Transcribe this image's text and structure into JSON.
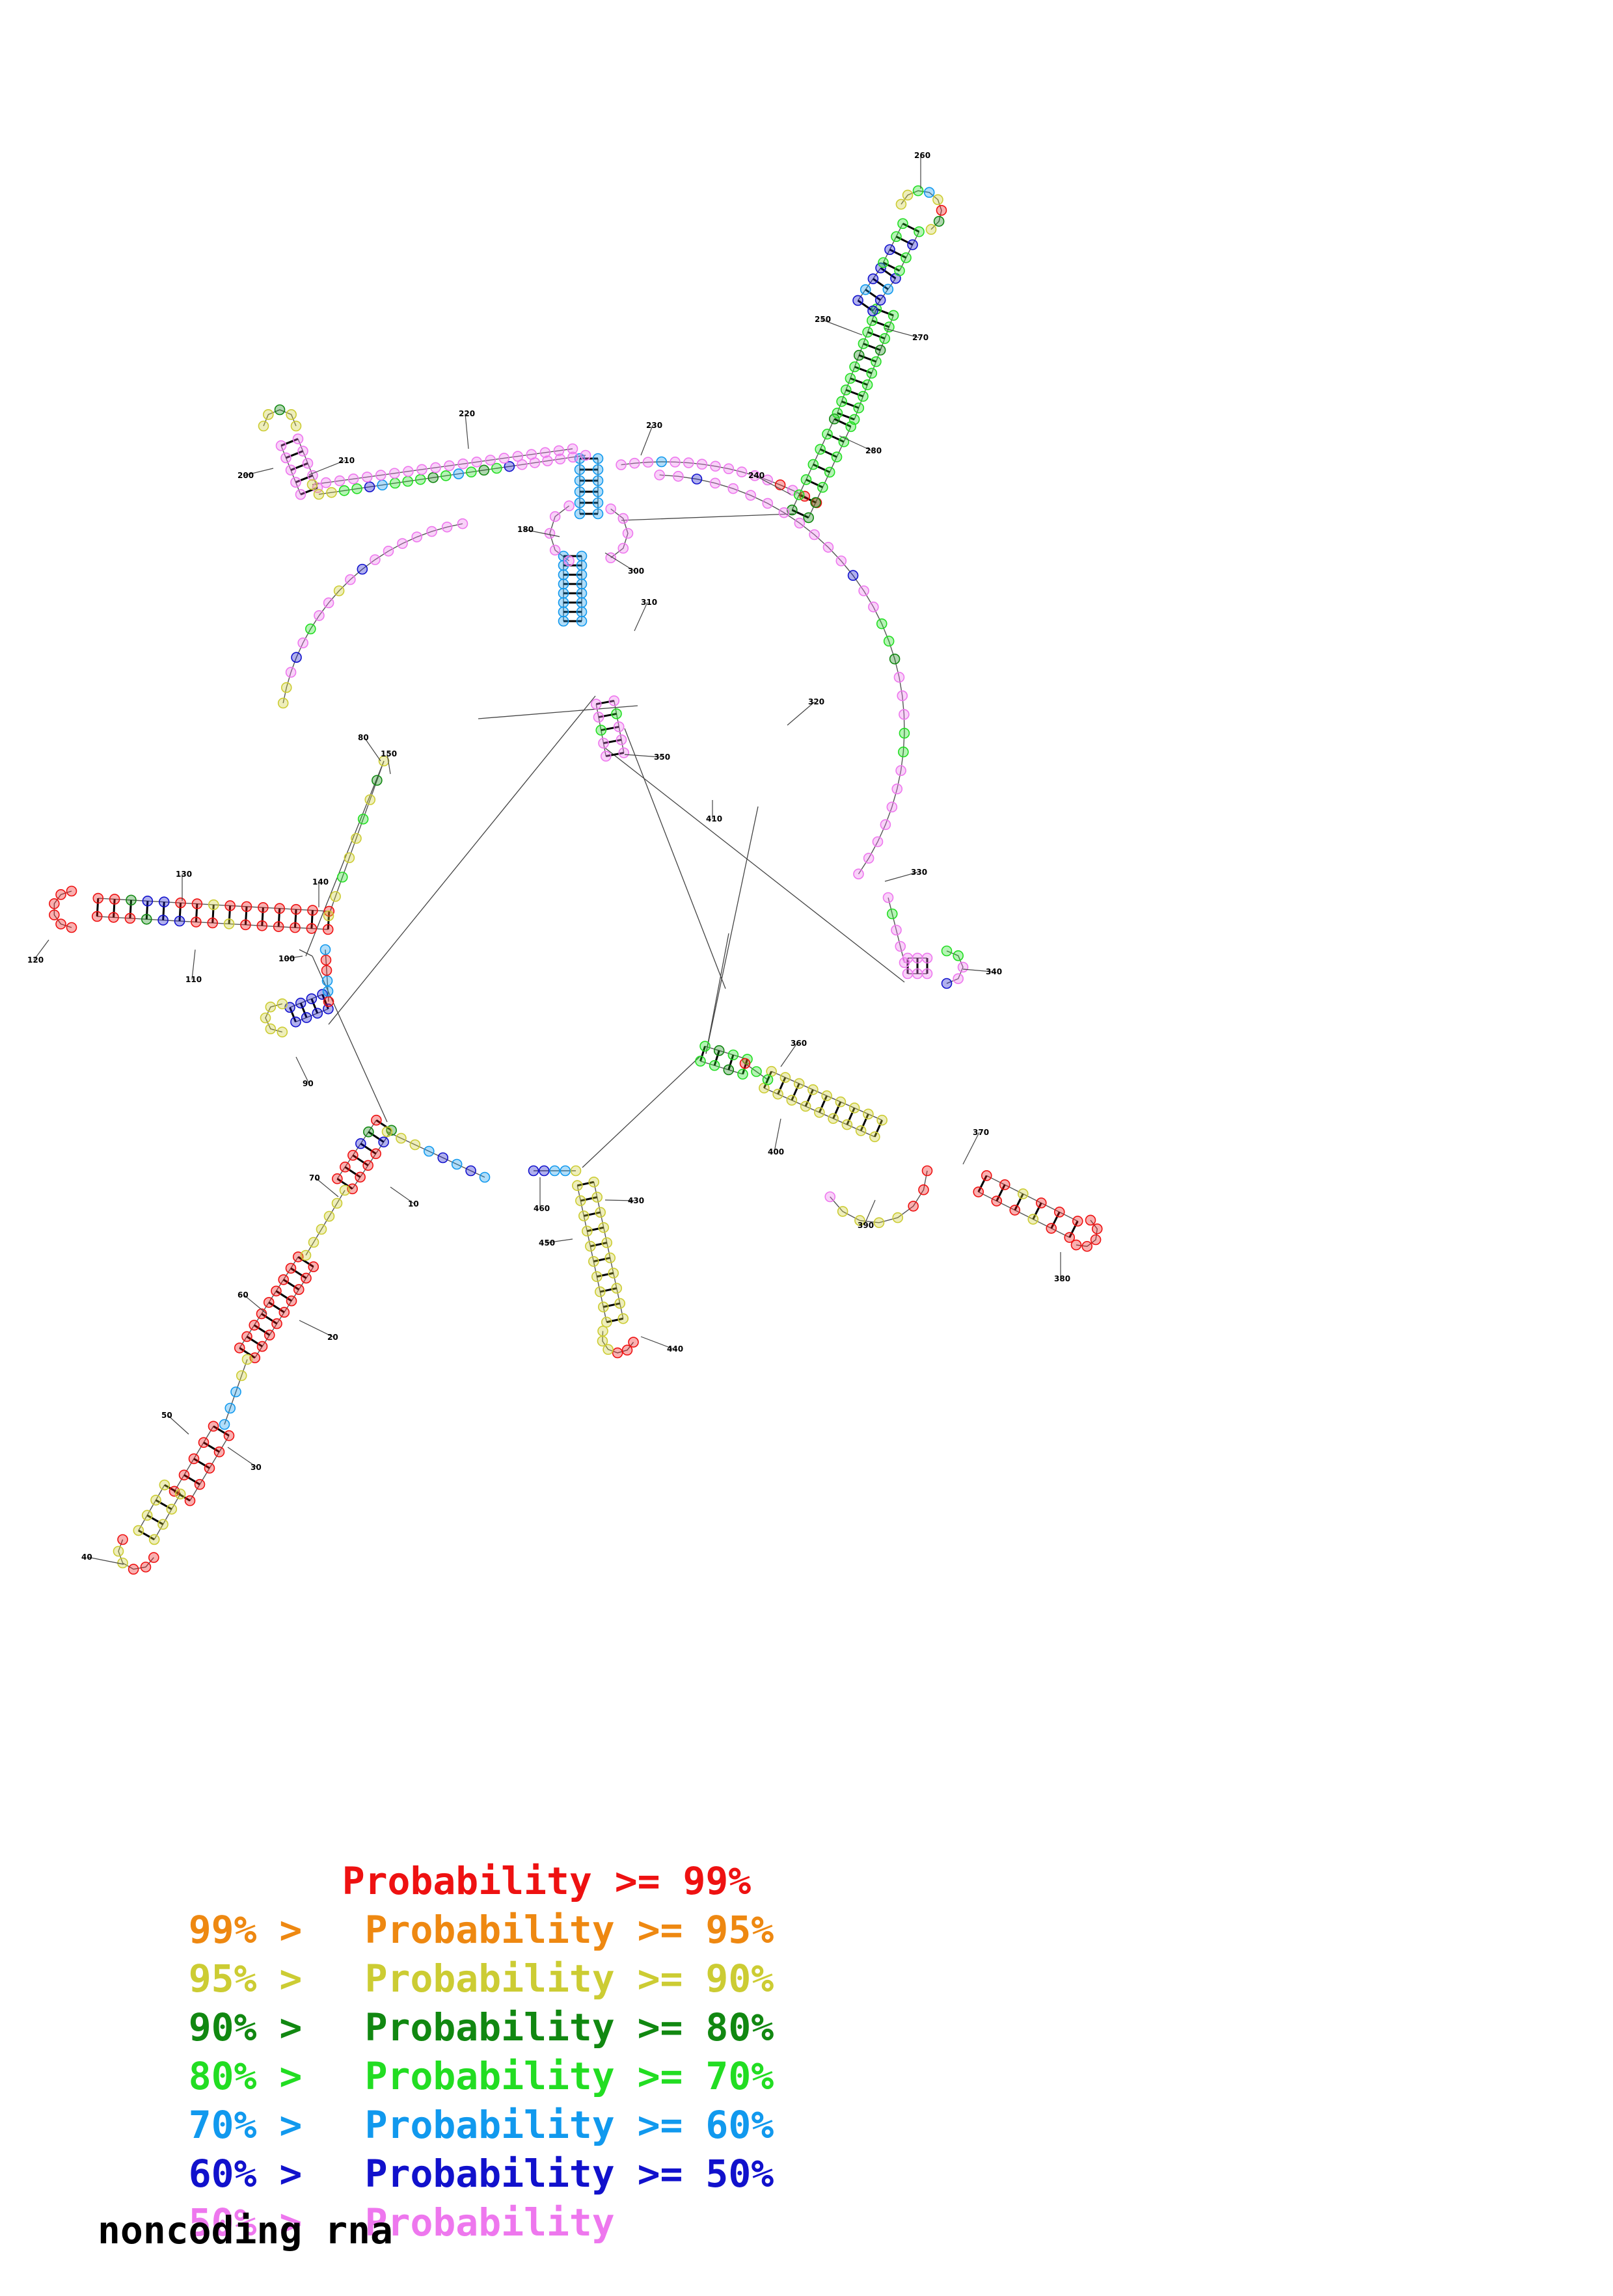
{
  "colors": {
    "p99": "#ee1111",
    "p95": "#ee8811",
    "p90": "#cccc33",
    "p80": "#118811",
    "p70": "#22dd22",
    "p60": "#1199ee",
    "p50": "#1111cc",
    "plow": "#ee77ee"
  },
  "legend": [
    {
      "left": "",
      "label": "Probability >= 99%",
      "color": "#ee1111"
    },
    {
      "left": "99% >",
      "label": "Probability >= 95%",
      "color": "#ee8811"
    },
    {
      "left": "95% >",
      "label": "Probability >= 90%",
      "color": "#cccc33"
    },
    {
      "left": "90% >",
      "label": "Probability >= 80%",
      "color": "#118811"
    },
    {
      "left": "80% >",
      "label": "Probability >= 70%",
      "color": "#22dd22"
    },
    {
      "left": "70% >",
      "label": "Probability >= 60%",
      "color": "#1199ee"
    },
    {
      "left": "60% >",
      "label": "Probability >= 50%",
      "color": "#1111cc"
    },
    {
      "left": "50% >",
      "label": "Probability",
      "color": "#ee77ee"
    }
  ],
  "caption": "noncoding rna",
  "position_labels": [
    "10",
    "20",
    "30",
    "40",
    "50",
    "60",
    "70",
    "80",
    "90",
    "100",
    "110",
    "120",
    "130",
    "140",
    "150",
    "180",
    "200",
    "210",
    "220",
    "230",
    "240",
    "250",
    "260",
    "270",
    "280",
    "300",
    "310",
    "320",
    "330",
    "340",
    "350",
    "360",
    "370",
    "380",
    "390",
    "400",
    "410",
    "430",
    "440",
    "450",
    "460"
  ]
}
